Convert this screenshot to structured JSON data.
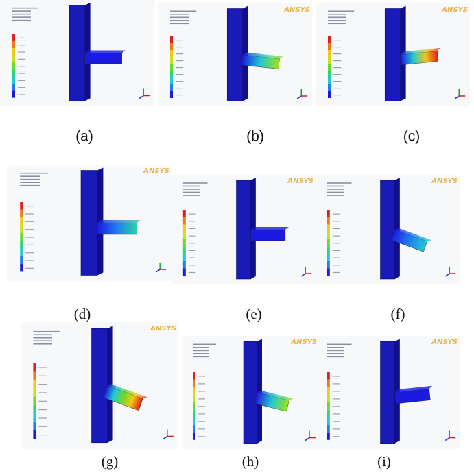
{
  "panels": [
    {
      "label": "(a)"
    },
    {
      "label": "(b)"
    },
    {
      "label": "(c)"
    },
    {
      "label": "(d)"
    },
    {
      "label": "(e)"
    },
    {
      "label": "(f)"
    },
    {
      "label": "(g)"
    },
    {
      "label": "(h)"
    },
    {
      "label": "(i)"
    }
  ],
  "logo": "ANSYS"
}
